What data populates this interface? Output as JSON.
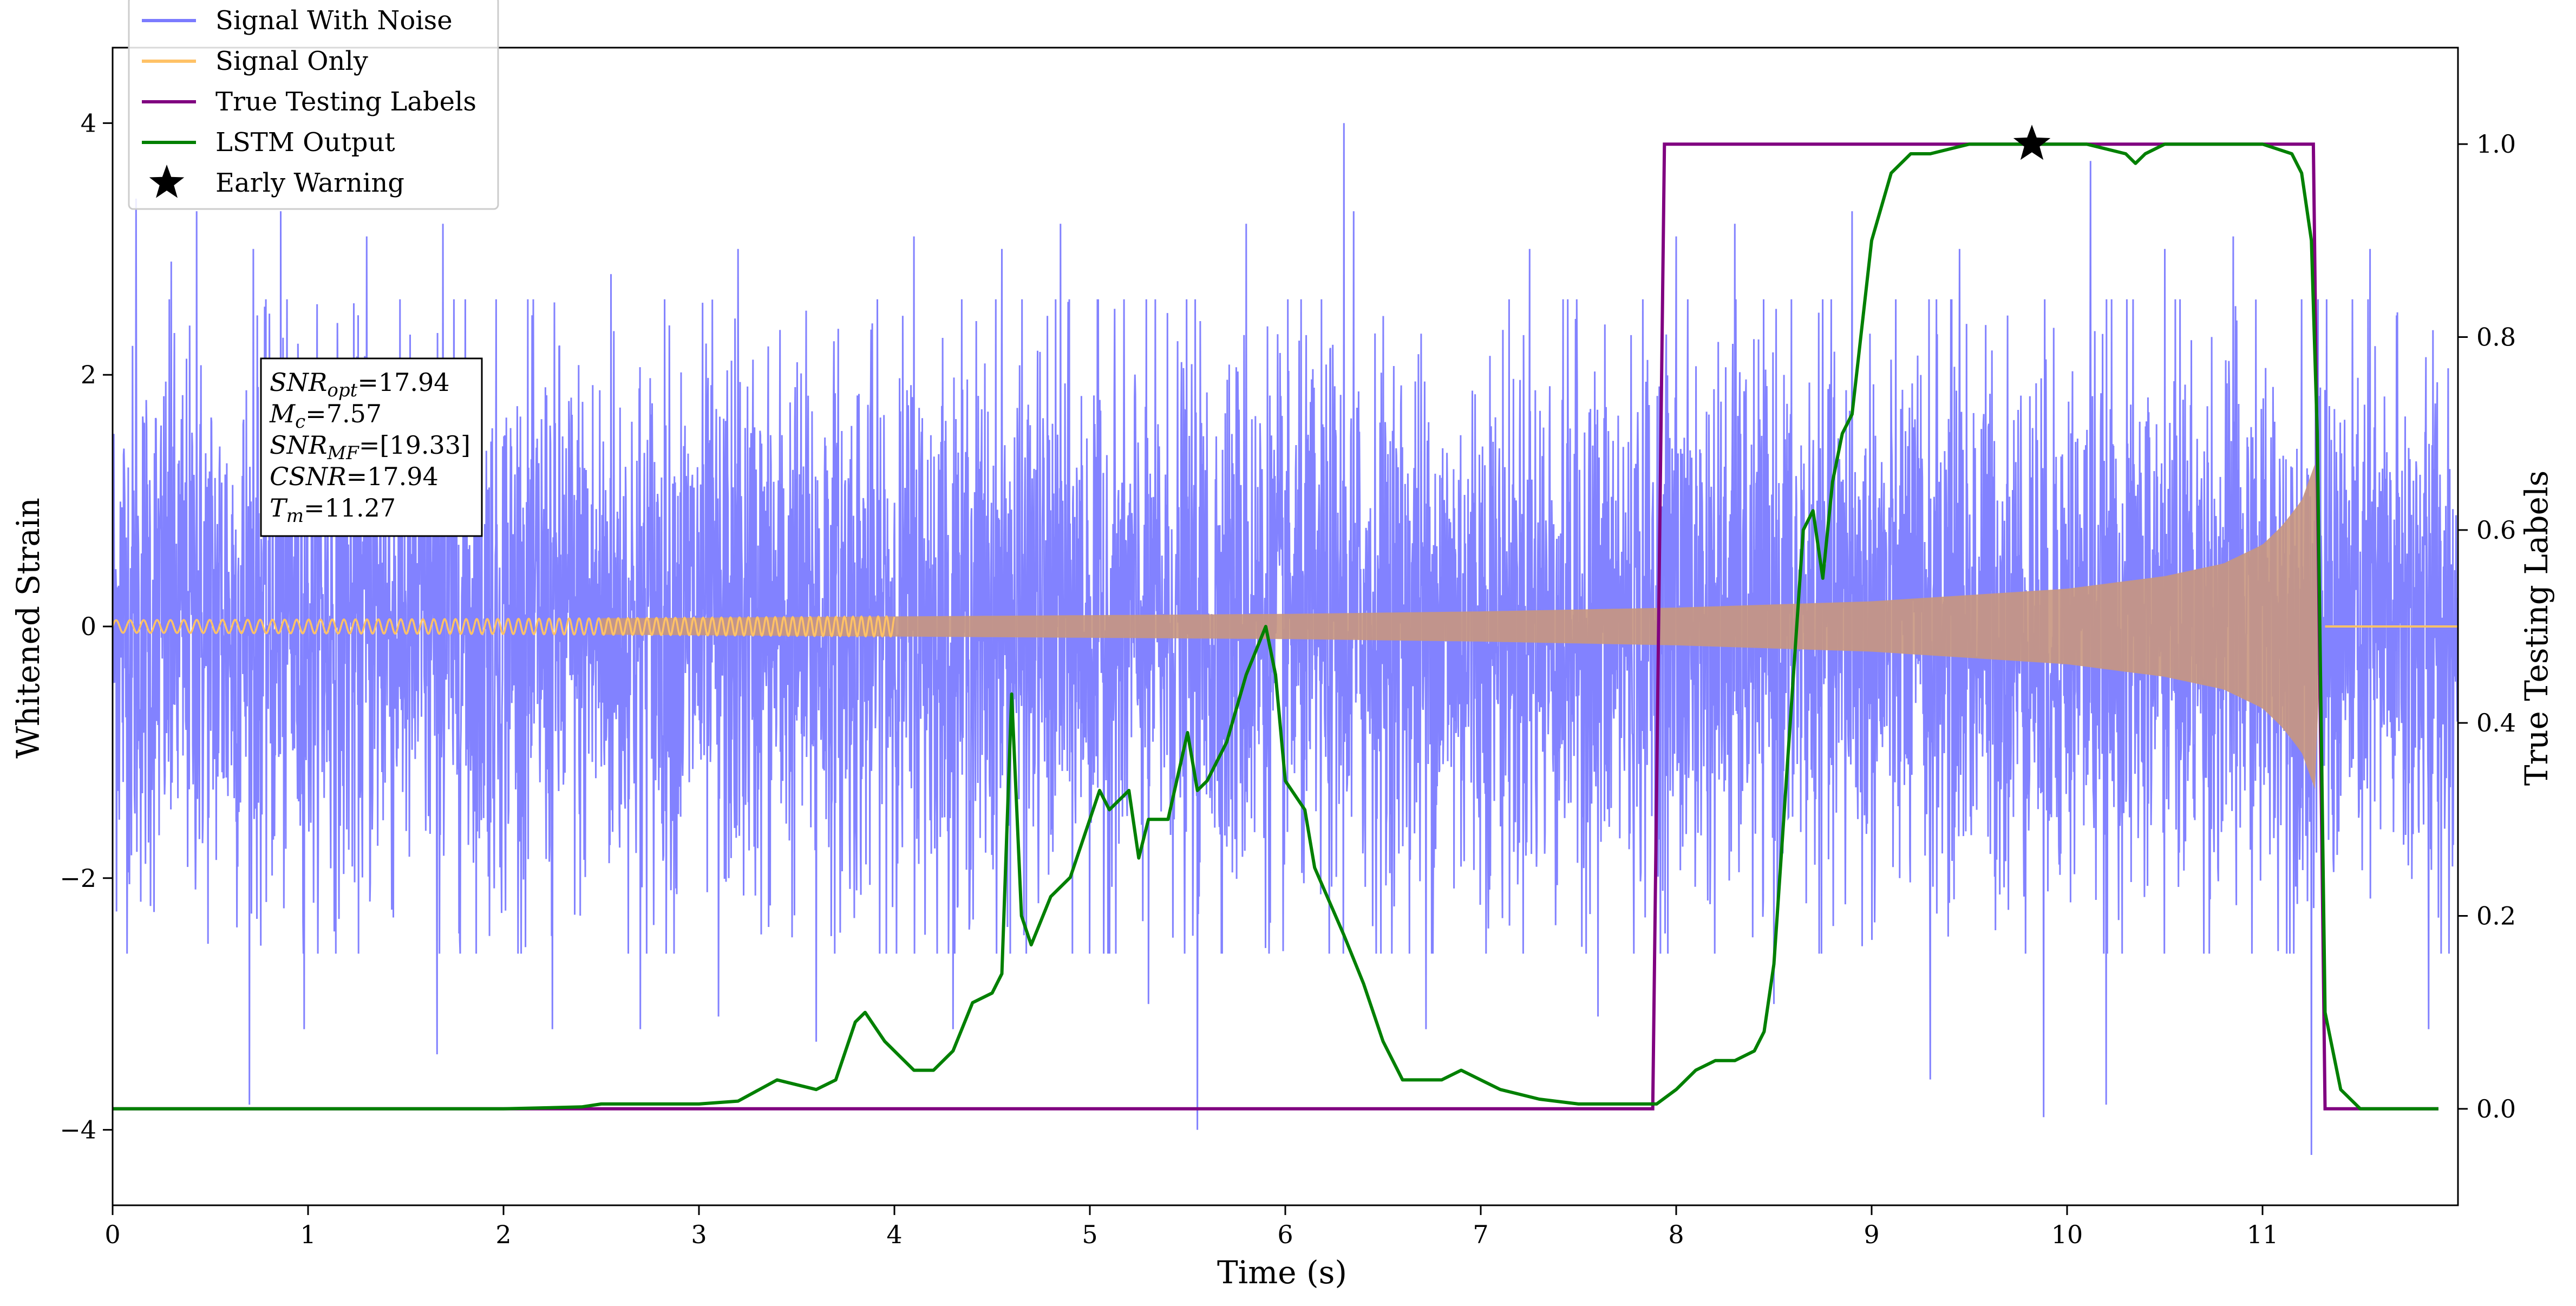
{
  "chart_data": {
    "type": "line",
    "xlabel": "Time (s)",
    "ylabel_left": "Whitened Strain",
    "ylabel_right": "True Testing Labels",
    "xlim": [
      0,
      12
    ],
    "ylim_left": [
      -4.6,
      4.6
    ],
    "ylim_right": [
      -0.1,
      1.1
    ],
    "x_ticks": [
      0,
      1,
      2,
      3,
      4,
      5,
      6,
      7,
      8,
      9,
      10,
      11
    ],
    "x_tick_labels": [
      "0",
      "1",
      "2",
      "3",
      "4",
      "5",
      "6",
      "7",
      "8",
      "9",
      "10",
      "11"
    ],
    "y_left_ticks": [
      -4,
      -2,
      0,
      2,
      4
    ],
    "y_left_tick_labels": [
      "−4",
      "−2",
      "0",
      "2",
      "4"
    ],
    "y_right_ticks": [
      0.0,
      0.2,
      0.4,
      0.6,
      0.8,
      1.0
    ],
    "y_right_tick_labels": [
      "0.0",
      "0.2",
      "0.4",
      "0.6",
      "0.8",
      "1.0"
    ],
    "legend": {
      "placement": "top-left",
      "entries": [
        {
          "label": "Signal With Noise",
          "color": "#7b7bff",
          "marker": "line"
        },
        {
          "label": "Signal Only",
          "color": "#ffc266",
          "marker": "line"
        },
        {
          "label": "True Testing Labels",
          "color": "#800080",
          "marker": "line"
        },
        {
          "label": "LSTM Output",
          "color": "#008000",
          "marker": "line"
        },
        {
          "label": "Early Warning",
          "color": "#000000",
          "marker": "star"
        }
      ]
    },
    "annotation": {
      "placement": "upper-left",
      "lines": [
        {
          "base": "SNR",
          "sub": "opt",
          "value": "=17.94"
        },
        {
          "base": "M",
          "sub": "c",
          "value": "=7.57"
        },
        {
          "base": "SNR",
          "sub": "MF",
          "value": "=[19.33]"
        },
        {
          "base": "CSNR",
          "sub": "",
          "value": "=17.94"
        },
        {
          "base": "T",
          "sub": "m",
          "value": "=11.27"
        }
      ]
    },
    "series": [
      {
        "name": "Signal With Noise",
        "axis": "left",
        "color": "#7b7bff",
        "x_range": [
          0,
          12
        ],
        "typical_amplitude": 1.1,
        "peaks": [
          [
            0.12,
            3.4
          ],
          [
            0.3,
            2.9
          ],
          [
            0.43,
            3.3
          ],
          [
            0.7,
            -3.8
          ],
          [
            0.72,
            3.0
          ],
          [
            0.86,
            3.3
          ],
          [
            0.98,
            -3.2
          ],
          [
            1.3,
            3.1
          ],
          [
            1.66,
            -3.4
          ],
          [
            1.69,
            3.2
          ],
          [
            2.25,
            -3.2
          ],
          [
            2.55,
            2.8
          ],
          [
            2.7,
            -3.2
          ],
          [
            3.1,
            -3.1
          ],
          [
            3.2,
            3.0
          ],
          [
            3.6,
            -3.3
          ],
          [
            4.1,
            3.1
          ],
          [
            4.3,
            -3.2
          ],
          [
            4.55,
            3.0
          ],
          [
            4.85,
            3.2
          ],
          [
            5.3,
            -3.0
          ],
          [
            5.55,
            -4.0
          ],
          [
            5.8,
            3.2
          ],
          [
            6.3,
            4.0
          ],
          [
            6.35,
            3.3
          ],
          [
            6.72,
            -3.2
          ],
          [
            7.25,
            3.0
          ],
          [
            7.6,
            -3.1
          ],
          [
            8.0,
            3.1
          ],
          [
            8.3,
            3.2
          ],
          [
            8.5,
            -3.0
          ],
          [
            8.9,
            3.3
          ],
          [
            9.3,
            -3.6
          ],
          [
            9.45,
            3.0
          ],
          [
            9.88,
            -3.9
          ],
          [
            10.12,
            3.7
          ],
          [
            10.2,
            -3.8
          ],
          [
            10.5,
            3.0
          ],
          [
            10.85,
            3.1
          ],
          [
            11.25,
            -4.2
          ],
          [
            11.55,
            3.0
          ],
          [
            11.85,
            -3.2
          ]
        ]
      },
      {
        "name": "Signal Only",
        "axis": "left",
        "color": "#ffc266",
        "t_merger": 11.27,
        "envelope": [
          [
            0,
            0.05
          ],
          [
            2,
            0.06
          ],
          [
            4,
            0.08
          ],
          [
            6,
            0.1
          ],
          [
            7,
            0.12
          ],
          [
            8,
            0.15
          ],
          [
            9,
            0.2
          ],
          [
            10,
            0.3
          ],
          [
            10.5,
            0.4
          ],
          [
            10.8,
            0.5
          ],
          [
            11.0,
            0.65
          ],
          [
            11.1,
            0.8
          ],
          [
            11.2,
            1.0
          ],
          [
            11.27,
            1.3
          ],
          [
            11.3,
            0.0
          ],
          [
            12,
            0.0
          ]
        ]
      },
      {
        "name": "True Testing Labels",
        "axis": "right",
        "color": "#800080",
        "x": [
          0.0,
          7.88,
          7.94,
          11.26,
          11.32,
          11.9
        ],
        "y": [
          0,
          0,
          1,
          1,
          0,
          0
        ]
      },
      {
        "name": "LSTM Output",
        "axis": "right",
        "color": "#008000",
        "x": [
          0.0,
          1.0,
          2.0,
          2.4,
          2.5,
          2.8,
          3.0,
          3.2,
          3.4,
          3.5,
          3.6,
          3.7,
          3.8,
          3.85,
          3.95,
          4.1,
          4.2,
          4.3,
          4.4,
          4.5,
          4.55,
          4.6,
          4.65,
          4.7,
          4.8,
          4.9,
          5.0,
          5.05,
          5.1,
          5.2,
          5.25,
          5.3,
          5.4,
          5.5,
          5.55,
          5.6,
          5.7,
          5.8,
          5.9,
          5.95,
          6.0,
          6.1,
          6.15,
          6.3,
          6.4,
          6.5,
          6.6,
          6.8,
          6.9,
          7.0,
          7.1,
          7.3,
          7.5,
          7.7,
          7.9,
          8.0,
          8.1,
          8.2,
          8.3,
          8.4,
          8.45,
          8.5,
          8.55,
          8.6,
          8.65,
          8.7,
          8.75,
          8.8,
          8.85,
          8.9,
          9.0,
          9.1,
          9.2,
          9.3,
          9.5,
          9.7,
          9.9,
          10.1,
          10.3,
          10.35,
          10.4,
          10.5,
          10.7,
          11.0,
          11.15,
          11.2,
          11.25,
          11.28,
          11.3,
          11.32,
          11.4,
          11.5,
          11.9
        ],
        "y": [
          0.0,
          0.0,
          0.0,
          0.002,
          0.005,
          0.005,
          0.005,
          0.008,
          0.03,
          0.025,
          0.02,
          0.03,
          0.09,
          0.1,
          0.07,
          0.04,
          0.04,
          0.06,
          0.11,
          0.12,
          0.14,
          0.43,
          0.2,
          0.17,
          0.22,
          0.24,
          0.3,
          0.33,
          0.31,
          0.33,
          0.26,
          0.3,
          0.3,
          0.39,
          0.33,
          0.34,
          0.38,
          0.45,
          0.5,
          0.45,
          0.34,
          0.31,
          0.25,
          0.18,
          0.13,
          0.07,
          0.03,
          0.03,
          0.04,
          0.03,
          0.02,
          0.01,
          0.005,
          0.005,
          0.005,
          0.02,
          0.04,
          0.05,
          0.05,
          0.06,
          0.08,
          0.15,
          0.3,
          0.45,
          0.6,
          0.62,
          0.55,
          0.65,
          0.7,
          0.72,
          0.9,
          0.97,
          0.99,
          0.99,
          1.0,
          1.0,
          1.0,
          1.0,
          0.99,
          0.98,
          0.99,
          1.0,
          1.0,
          1.0,
          0.99,
          0.97,
          0.9,
          0.7,
          0.4,
          0.1,
          0.02,
          0.0,
          0.0
        ]
      }
    ],
    "early_warning": {
      "x": 9.82,
      "y": 1.0,
      "axis": "right",
      "marker": "star",
      "color": "#000000"
    }
  }
}
